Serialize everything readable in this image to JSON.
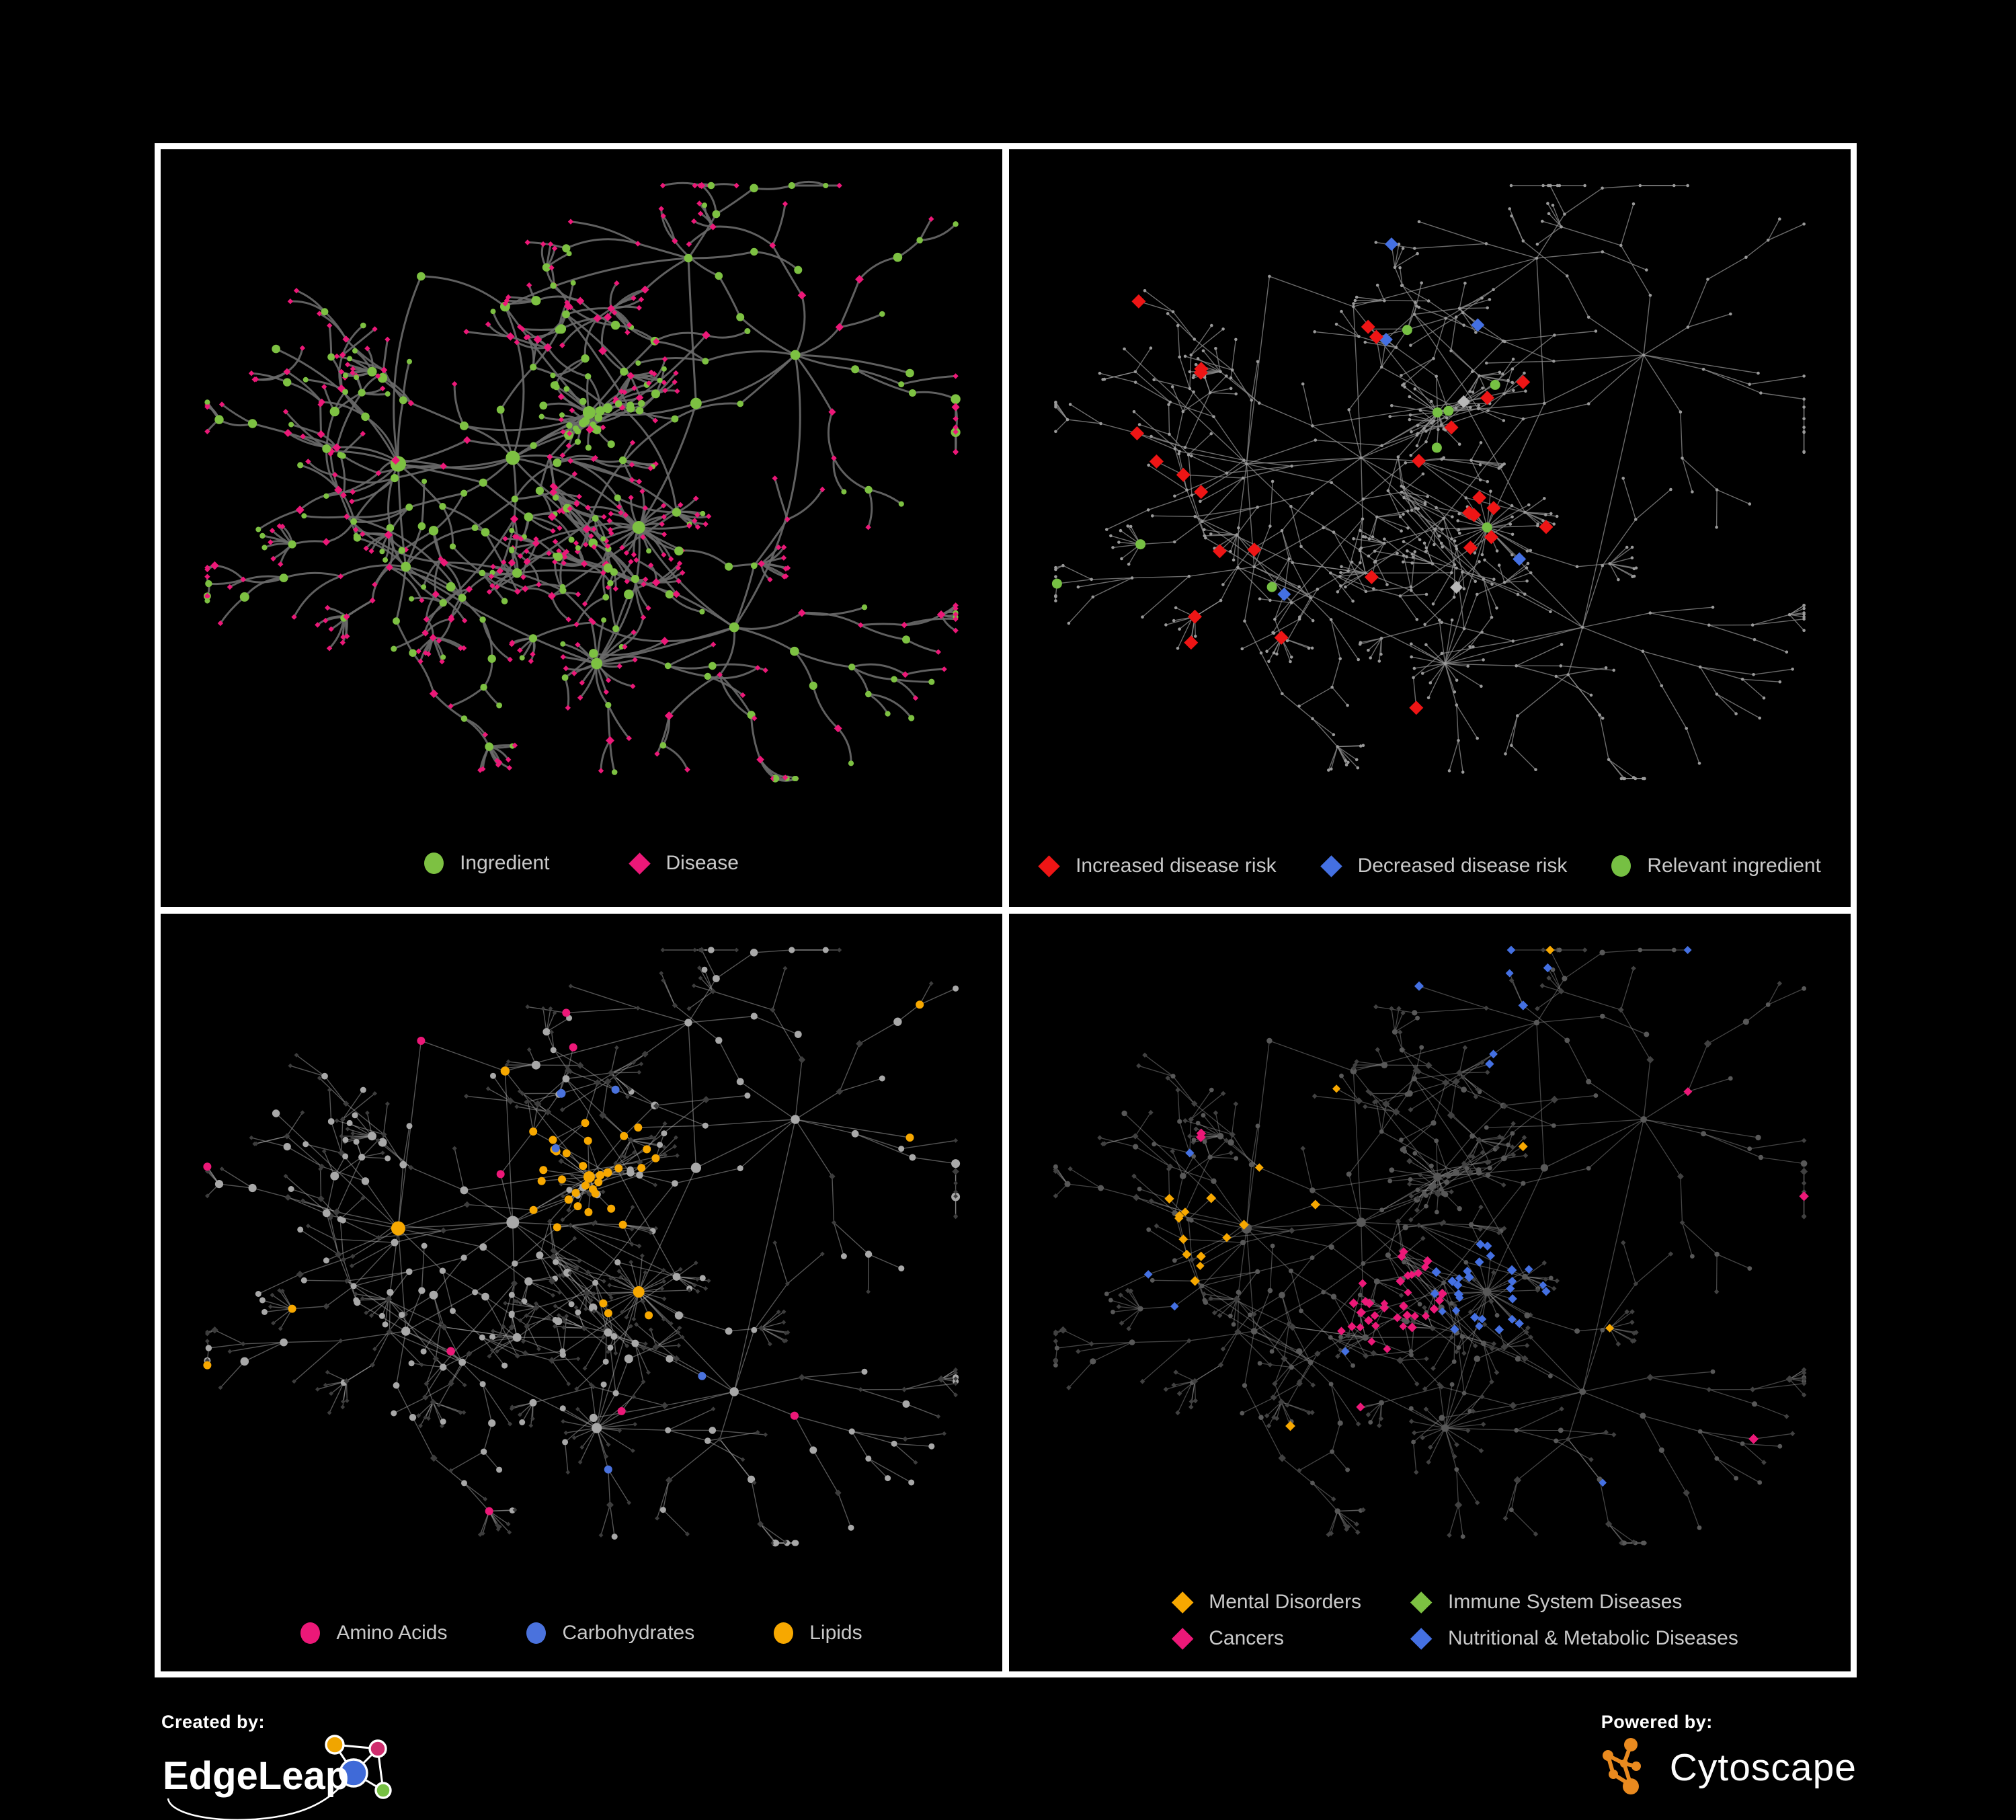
{
  "panels": [
    {
      "id": "ingredient-disease",
      "legend": [
        {
          "label": "Ingredient",
          "shape": "circle",
          "color": "#7dc142"
        },
        {
          "label": "Disease",
          "shape": "diamond",
          "color": "#ec1878"
        }
      ]
    },
    {
      "id": "disease-risk",
      "legend": [
        {
          "label": "Increased disease risk",
          "shape": "diamond",
          "color": "#ee1515"
        },
        {
          "label": "Decreased disease risk",
          "shape": "diamond",
          "color": "#4470e2"
        },
        {
          "label": "Relevant ingredient",
          "shape": "circle",
          "color": "#76c043"
        }
      ]
    },
    {
      "id": "compound-classes",
      "legend": [
        {
          "label": "Amino Acids",
          "shape": "circle",
          "color": "#ec1878"
        },
        {
          "label": "Carbohydrates",
          "shape": "circle",
          "color": "#4a72dd"
        },
        {
          "label": "Lipids",
          "shape": "circle",
          "color": "#f7a800"
        }
      ]
    },
    {
      "id": "disease-classes",
      "legend": [
        {
          "label": "Mental Disorders",
          "shape": "diamond",
          "color": "#f7a800"
        },
        {
          "label": "Immune System Diseases",
          "shape": "diamond",
          "color": "#7dc142"
        },
        {
          "label": "Cancers",
          "shape": "diamond",
          "color": "#ec1878"
        },
        {
          "label": "Nutritional & Metabolic Diseases",
          "shape": "diamond",
          "color": "#4470e2"
        }
      ]
    }
  ],
  "footer": {
    "created_by_label": "Created by:",
    "created_by_name": "EdgeLeap",
    "powered_by_label": "Powered by:",
    "powered_by_name": "Cytoscape"
  },
  "colors": {
    "background": "#000000",
    "panel_border": "#ffffff",
    "legend_text": "#c9c9c9",
    "edge_curved": "#6a6a6a",
    "edge_thin": "#8f8f8f",
    "tiny_node": "#9a9a9a",
    "silver_diamond": "#b8b8b8",
    "gray_circle": "#a8a8a8",
    "dark_diamond": "#3d3d3d",
    "dark_diamond_p4": "#414141",
    "dark_circle_p4": "#585858",
    "logo_orange": "#e98a1f",
    "logo_blue": "#3f6ad8",
    "logo_pink": "#cf2d6e",
    "logo_green": "#76c043",
    "logo_yellow": "#f0a500"
  }
}
